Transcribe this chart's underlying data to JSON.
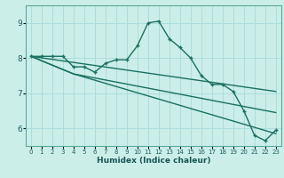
{
  "xlabel": "Humidex (Indice chaleur)",
  "background_color": "#cceee8",
  "grid_color": "#aadddd",
  "line_color": "#1a7060",
  "xlim": [
    -0.5,
    23.5
  ],
  "ylim": [
    5.5,
    9.5
  ],
  "yticks": [
    6,
    7,
    8,
    9
  ],
  "xticks": [
    0,
    1,
    2,
    3,
    4,
    5,
    6,
    7,
    8,
    9,
    10,
    11,
    12,
    13,
    14,
    15,
    16,
    17,
    18,
    19,
    20,
    21,
    22,
    23
  ],
  "series": [
    {
      "x": [
        0,
        1,
        2,
        3,
        4,
        5,
        6,
        7,
        8,
        9,
        10,
        11,
        12,
        13,
        14,
        15,
        16,
        17,
        18,
        19,
        20,
        21,
        22,
        23
      ],
      "y": [
        8.05,
        8.05,
        8.05,
        8.05,
        7.75,
        7.75,
        7.6,
        7.85,
        7.95,
        7.95,
        8.35,
        9.0,
        9.05,
        8.55,
        8.3,
        8.0,
        7.5,
        7.25,
        7.25,
        7.05,
        6.5,
        5.8,
        5.65,
        5.95
      ],
      "markers": true
    },
    {
      "x": [
        0,
        4,
        23
      ],
      "y": [
        8.05,
        7.55,
        5.85
      ],
      "markers": false
    },
    {
      "x": [
        0,
        4,
        23
      ],
      "y": [
        8.05,
        7.55,
        6.45
      ],
      "markers": false
    },
    {
      "x": [
        0,
        23
      ],
      "y": [
        8.05,
        7.05
      ],
      "markers": false
    }
  ]
}
